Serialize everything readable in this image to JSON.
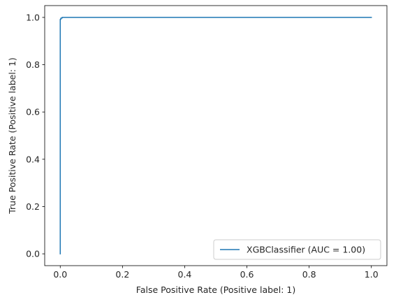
{
  "chart_data": {
    "type": "line",
    "xlabel": "False Positive Rate (Positive label: 1)",
    "ylabel": "True Positive Rate (Positive label: 1)",
    "xlim": [
      -0.05,
      1.05
    ],
    "ylim": [
      -0.05,
      1.05
    ],
    "xticks": [
      "0.0",
      "0.2",
      "0.4",
      "0.6",
      "0.8",
      "1.0"
    ],
    "yticks": [
      "0.0",
      "0.2",
      "0.4",
      "0.6",
      "0.8",
      "1.0"
    ],
    "grid": false,
    "legend_position": "lower right",
    "series": [
      {
        "name": "XGBClassifier (AUC = 1.00)",
        "color": "#1f77b4",
        "x": [
          0.0,
          0.0,
          0.002,
          0.002,
          0.006,
          0.006,
          1.0
        ],
        "y": [
          0.0,
          0.992,
          0.992,
          0.997,
          0.997,
          1.0,
          1.0
        ]
      }
    ]
  }
}
